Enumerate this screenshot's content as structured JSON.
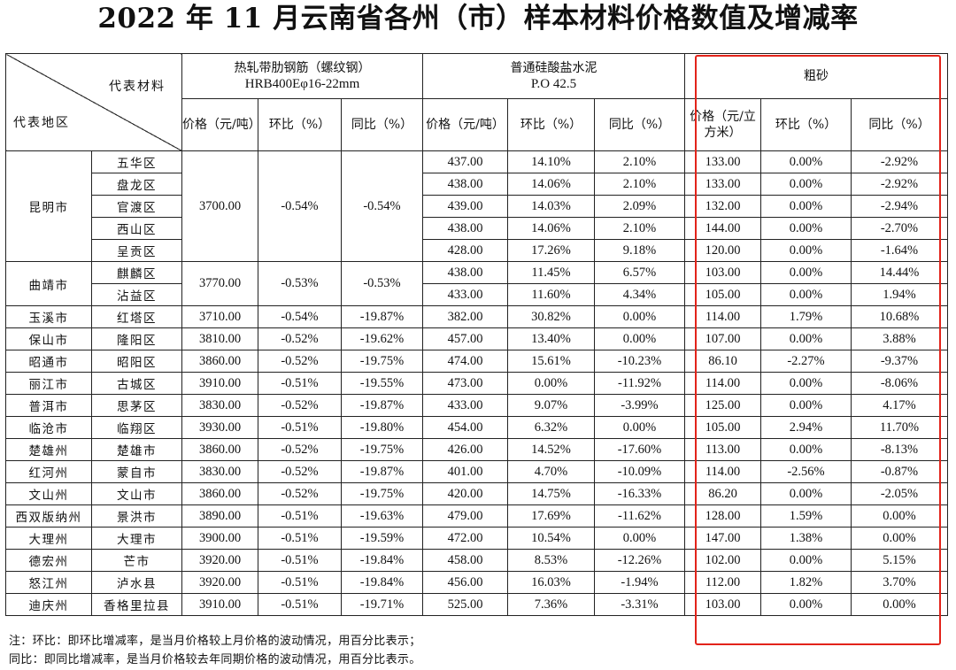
{
  "title": "2022 年 11 月云南省各州（市）样本材料价格数值及增减率",
  "header": {
    "material_label": "代表材料",
    "region_label": "代表地区",
    "steel_name": "热轧带肋钢筋（螺纹钢）",
    "steel_spec": "HRB400Eφ16-22mm",
    "cement_name": "普通硅酸盐水泥",
    "cement_spec": "P.O 42.5",
    "sand_name": "粗砂",
    "price_ton": "价格（元/吨）",
    "price_m3": "价格（元/立方米）",
    "mom": "环比（%）",
    "yoy": "同比（%）"
  },
  "groups": [
    {
      "city": "昆明市",
      "steel": [
        "3700.00",
        "-0.54%",
        "-0.54%"
      ],
      "districts": [
        {
          "name": "五华区",
          "cement": [
            "437.00",
            "14.10%",
            "2.10%"
          ],
          "sand": [
            "133.00",
            "0.00%",
            "-2.92%"
          ]
        },
        {
          "name": "盘龙区",
          "cement": [
            "438.00",
            "14.06%",
            "2.10%"
          ],
          "sand": [
            "133.00",
            "0.00%",
            "-2.92%"
          ]
        },
        {
          "name": "官渡区",
          "cement": [
            "439.00",
            "14.03%",
            "2.09%"
          ],
          "sand": [
            "132.00",
            "0.00%",
            "-2.94%"
          ]
        },
        {
          "name": "西山区",
          "cement": [
            "438.00",
            "14.06%",
            "2.10%"
          ],
          "sand": [
            "144.00",
            "0.00%",
            "-2.70%"
          ]
        },
        {
          "name": "呈贡区",
          "cement": [
            "428.00",
            "17.26%",
            "9.18%"
          ],
          "sand": [
            "120.00",
            "0.00%",
            "-1.64%"
          ]
        }
      ]
    },
    {
      "city": "曲靖市",
      "steel": [
        "3770.00",
        "-0.53%",
        "-0.53%"
      ],
      "districts": [
        {
          "name": "麒麟区",
          "cement": [
            "438.00",
            "11.45%",
            "6.57%"
          ],
          "sand": [
            "103.00",
            "0.00%",
            "14.44%"
          ]
        },
        {
          "name": "沾益区",
          "cement": [
            "433.00",
            "11.60%",
            "4.34%"
          ],
          "sand": [
            "105.00",
            "0.00%",
            "1.94%"
          ]
        }
      ]
    },
    {
      "city": "玉溪市",
      "steel": [
        "3710.00",
        "-0.54%",
        "-19.87%"
      ],
      "districts": [
        {
          "name": "红塔区",
          "cement": [
            "382.00",
            "30.82%",
            "0.00%"
          ],
          "sand": [
            "114.00",
            "1.79%",
            "10.68%"
          ]
        }
      ]
    },
    {
      "city": "保山市",
      "steel": [
        "3810.00",
        "-0.52%",
        "-19.62%"
      ],
      "districts": [
        {
          "name": "隆阳区",
          "cement": [
            "457.00",
            "13.40%",
            "0.00%"
          ],
          "sand": [
            "107.00",
            "0.00%",
            "3.88%"
          ]
        }
      ]
    },
    {
      "city": "昭通市",
      "steel": [
        "3860.00",
        "-0.52%",
        "-19.75%"
      ],
      "districts": [
        {
          "name": "昭阳区",
          "cement": [
            "474.00",
            "15.61%",
            "-10.23%"
          ],
          "sand": [
            "86.10",
            "-2.27%",
            "-9.37%"
          ]
        }
      ]
    },
    {
      "city": "丽江市",
      "steel": [
        "3910.00",
        "-0.51%",
        "-19.55%"
      ],
      "districts": [
        {
          "name": "古城区",
          "cement": [
            "473.00",
            "0.00%",
            "-11.92%"
          ],
          "sand": [
            "114.00",
            "0.00%",
            "-8.06%"
          ]
        }
      ]
    },
    {
      "city": "普洱市",
      "steel": [
        "3830.00",
        "-0.52%",
        "-19.87%"
      ],
      "districts": [
        {
          "name": "思茅区",
          "cement": [
            "433.00",
            "9.07%",
            "-3.99%"
          ],
          "sand": [
            "125.00",
            "0.00%",
            "4.17%"
          ]
        }
      ]
    },
    {
      "city": "临沧市",
      "steel": [
        "3930.00",
        "-0.51%",
        "-19.80%"
      ],
      "districts": [
        {
          "name": "临翔区",
          "cement": [
            "454.00",
            "6.32%",
            "0.00%"
          ],
          "sand": [
            "105.00",
            "2.94%",
            "11.70%"
          ]
        }
      ]
    },
    {
      "city": "楚雄州",
      "steel": [
        "3860.00",
        "-0.52%",
        "-19.75%"
      ],
      "districts": [
        {
          "name": "楚雄市",
          "cement": [
            "426.00",
            "14.52%",
            "-17.60%"
          ],
          "sand": [
            "113.00",
            "0.00%",
            "-8.13%"
          ]
        }
      ]
    },
    {
      "city": "红河州",
      "steel": [
        "3830.00",
        "-0.52%",
        "-19.87%"
      ],
      "districts": [
        {
          "name": "蒙自市",
          "cement": [
            "401.00",
            "4.70%",
            "-10.09%"
          ],
          "sand": [
            "114.00",
            "-2.56%",
            "-0.87%"
          ]
        }
      ]
    },
    {
      "city": "文山州",
      "steel": [
        "3860.00",
        "-0.52%",
        "-19.75%"
      ],
      "districts": [
        {
          "name": "文山市",
          "cement": [
            "420.00",
            "14.75%",
            "-16.33%"
          ],
          "sand": [
            "86.20",
            "0.00%",
            "-2.05%"
          ]
        }
      ]
    },
    {
      "city": "西双版纳州",
      "steel": [
        "3890.00",
        "-0.51%",
        "-19.63%"
      ],
      "districts": [
        {
          "name": "景洪市",
          "cement": [
            "479.00",
            "17.69%",
            "-11.62%"
          ],
          "sand": [
            "128.00",
            "1.59%",
            "0.00%"
          ]
        }
      ]
    },
    {
      "city": "大理州",
      "steel": [
        "3900.00",
        "-0.51%",
        "-19.59%"
      ],
      "districts": [
        {
          "name": "大理市",
          "cement": [
            "472.00",
            "10.54%",
            "0.00%"
          ],
          "sand": [
            "147.00",
            "1.38%",
            "0.00%"
          ]
        }
      ]
    },
    {
      "city": "德宏州",
      "steel": [
        "3920.00",
        "-0.51%",
        "-19.84%"
      ],
      "districts": [
        {
          "name": "芒市",
          "cement": [
            "458.00",
            "8.53%",
            "-12.26%"
          ],
          "sand": [
            "102.00",
            "0.00%",
            "5.15%"
          ]
        }
      ]
    },
    {
      "city": "怒江州",
      "steel": [
        "3920.00",
        "-0.51%",
        "-19.84%"
      ],
      "districts": [
        {
          "name": "泸水县",
          "cement": [
            "456.00",
            "16.03%",
            "-1.94%"
          ],
          "sand": [
            "112.00",
            "1.82%",
            "3.70%"
          ]
        }
      ]
    },
    {
      "city": "迪庆州",
      "steel": [
        "3910.00",
        "-0.51%",
        "-19.71%"
      ],
      "districts": [
        {
          "name": "香格里拉县",
          "cement": [
            "525.00",
            "7.36%",
            "-3.31%"
          ],
          "sand": [
            "103.00",
            "0.00%",
            "0.00%"
          ]
        }
      ]
    }
  ],
  "notes": [
    "注：环比：即环比增减率，是当月价格较上月价格的波动情况，用百分比表示；",
    "同比：即同比增减率，是当月价格较去年同期价格的波动情况，用百分比表示。"
  ],
  "highlight_color": "#e2231a"
}
